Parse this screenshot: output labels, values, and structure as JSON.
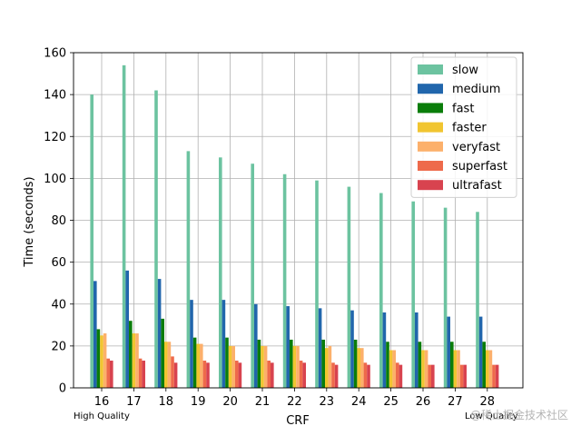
{
  "chart_data": {
    "type": "bar",
    "xlabel": "CRF",
    "ylabel": "Time (seconds)",
    "ylim": [
      0,
      160
    ],
    "yticks": [
      0,
      20,
      40,
      60,
      80,
      100,
      120,
      140,
      160
    ],
    "grid": true,
    "legend_position": "top-right",
    "categories": [
      "16",
      "17",
      "18",
      "19",
      "20",
      "21",
      "22",
      "23",
      "24",
      "25",
      "26",
      "27",
      "28"
    ],
    "series": [
      {
        "name": "slow",
        "color": "#6cc3a0",
        "values": [
          140,
          154,
          142,
          113,
          110,
          107,
          102,
          99,
          96,
          93,
          89,
          86,
          84
        ]
      },
      {
        "name": "medium",
        "color": "#2166ac",
        "values": [
          51,
          56,
          52,
          42,
          42,
          40,
          39,
          38,
          37,
          36,
          36,
          34,
          34
        ]
      },
      {
        "name": "fast",
        "color": "#0a7d0a",
        "values": [
          28,
          32,
          33,
          24,
          24,
          23,
          23,
          23,
          23,
          22,
          22,
          22,
          22
        ]
      },
      {
        "name": "faster",
        "color": "#f1c530",
        "values": [
          25,
          26,
          22,
          21,
          20,
          20,
          20,
          19,
          19,
          18,
          18,
          18,
          18
        ]
      },
      {
        "name": "veryfast",
        "color": "#fcb06b",
        "values": [
          26,
          26,
          22,
          21,
          20,
          20,
          20,
          20,
          19,
          18,
          18,
          18,
          18
        ]
      },
      {
        "name": "superfast",
        "color": "#ee6a4b",
        "values": [
          14,
          14,
          15,
          13,
          13,
          13,
          13,
          12,
          12,
          12,
          11,
          11,
          11
        ]
      },
      {
        "name": "ultrafast",
        "color": "#d8434f",
        "values": [
          13,
          13,
          12,
          12,
          12,
          12,
          12,
          11,
          11,
          11,
          11,
          11,
          11
        ]
      }
    ],
    "annotations": {
      "left_note": "High Quality",
      "right_note": "Low Quality"
    }
  },
  "watermark": "@稀土掘金技术社区"
}
